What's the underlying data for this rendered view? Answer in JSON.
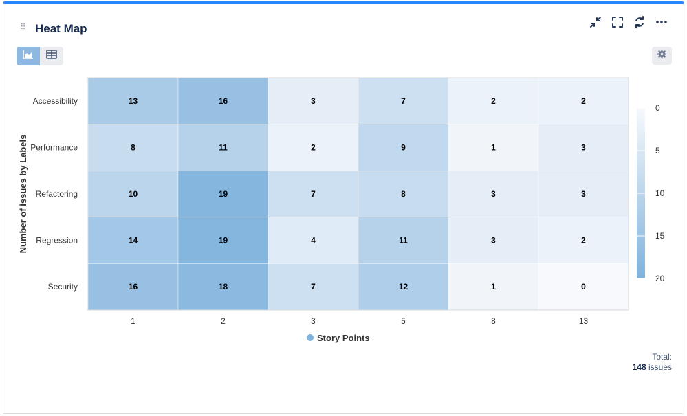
{
  "widget": {
    "title": "Heat Map",
    "icons": {
      "minimize": "collapse-arrows-icon",
      "fullscreen": "fullscreen-icon",
      "refresh": "refresh-icon",
      "more": "more-icon",
      "chart_view": "area-chart-icon",
      "table_view": "table-icon",
      "settings": "gear-icon"
    },
    "active_view": "chart"
  },
  "total": {
    "label": "Total:",
    "count": "148",
    "unit": "issues"
  },
  "colors": {
    "low": "#f7f9fc",
    "high": "#7fb2dc",
    "accent": "#2684ff"
  },
  "chart_data": {
    "type": "heatmap",
    "title": "",
    "xlabel": "",
    "ylabel": "Number of issues by Labels",
    "x_categories": [
      "1",
      "2",
      "3",
      "5",
      "8",
      "13"
    ],
    "y_categories": [
      "Accessibility",
      "Performance",
      "Refactoring",
      "Regression",
      "Security"
    ],
    "values": [
      [
        13,
        16,
        3,
        7,
        2,
        2
      ],
      [
        8,
        11,
        2,
        9,
        1,
        3
      ],
      [
        10,
        19,
        7,
        8,
        3,
        3
      ],
      [
        14,
        19,
        4,
        11,
        3,
        2
      ],
      [
        16,
        18,
        7,
        12,
        1,
        0
      ]
    ],
    "color_scale": {
      "min": 0,
      "max": 20,
      "ticks": [
        0,
        5,
        10,
        15,
        20
      ]
    },
    "series": [
      {
        "name": "Story Points"
      }
    ],
    "legend_position": "bottom",
    "colorbar_position": "right"
  }
}
